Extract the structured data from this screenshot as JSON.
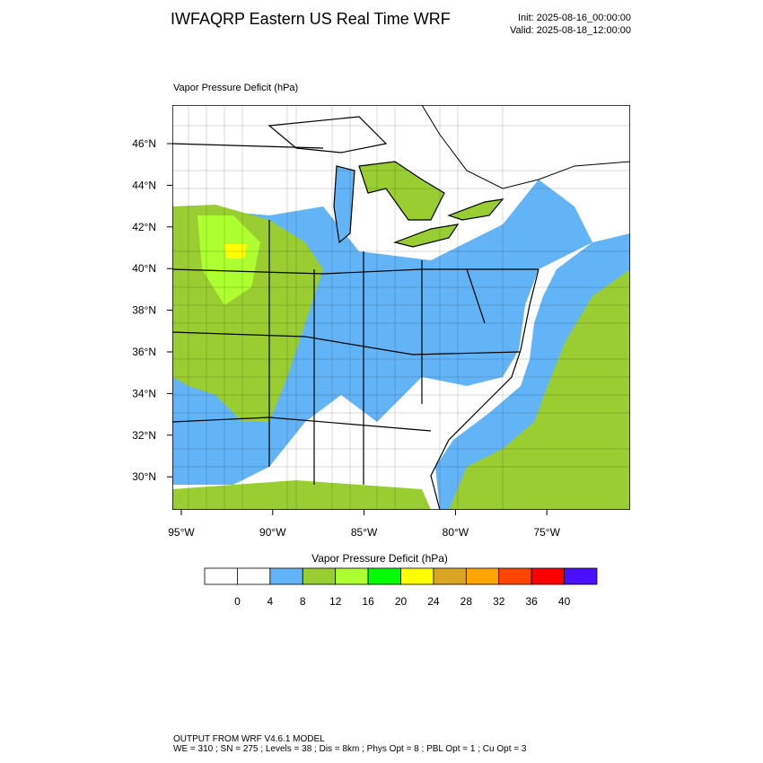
{
  "header": {
    "title": "IWFAQRP Eastern US Real Time WRF",
    "init": "Init: 2025-08-16_00:00:00",
    "valid": "Valid: 2025-08-18_12:00:00"
  },
  "map": {
    "label": "Vapor Pressure Deficit   (hPa)",
    "lat_labels": [
      "46°N",
      "44°N",
      "42°N",
      "40°N",
      "38°N",
      "36°N",
      "34°N",
      "32°N",
      "30°N"
    ],
    "lon_labels": [
      "95°W",
      "90°W",
      "85°W",
      "80°W",
      "75°W"
    ]
  },
  "colorbar": {
    "title": "Vapor Pressure Deficit  (hPa)",
    "colors": [
      "#ffffff",
      "#ffffff",
      "#63b4f7",
      "#9acd32",
      "#adff2f",
      "#00ff00",
      "#ffff00",
      "#daa520",
      "#ffa500",
      "#ff4500",
      "#ff0000",
      "#4b0fff"
    ],
    "levels": [
      0,
      4,
      8,
      12,
      16,
      20,
      24,
      28,
      32,
      36,
      40
    ]
  },
  "footer": {
    "line1": "OUTPUT FROM WRF V4.6.1 MODEL",
    "line2": "WE = 310 ; SN = 275 ; Levels = 38 ; Dis = 8km ; Phys Opt = 8 ; PBL Opt = 1 ; Cu Opt = 3"
  }
}
